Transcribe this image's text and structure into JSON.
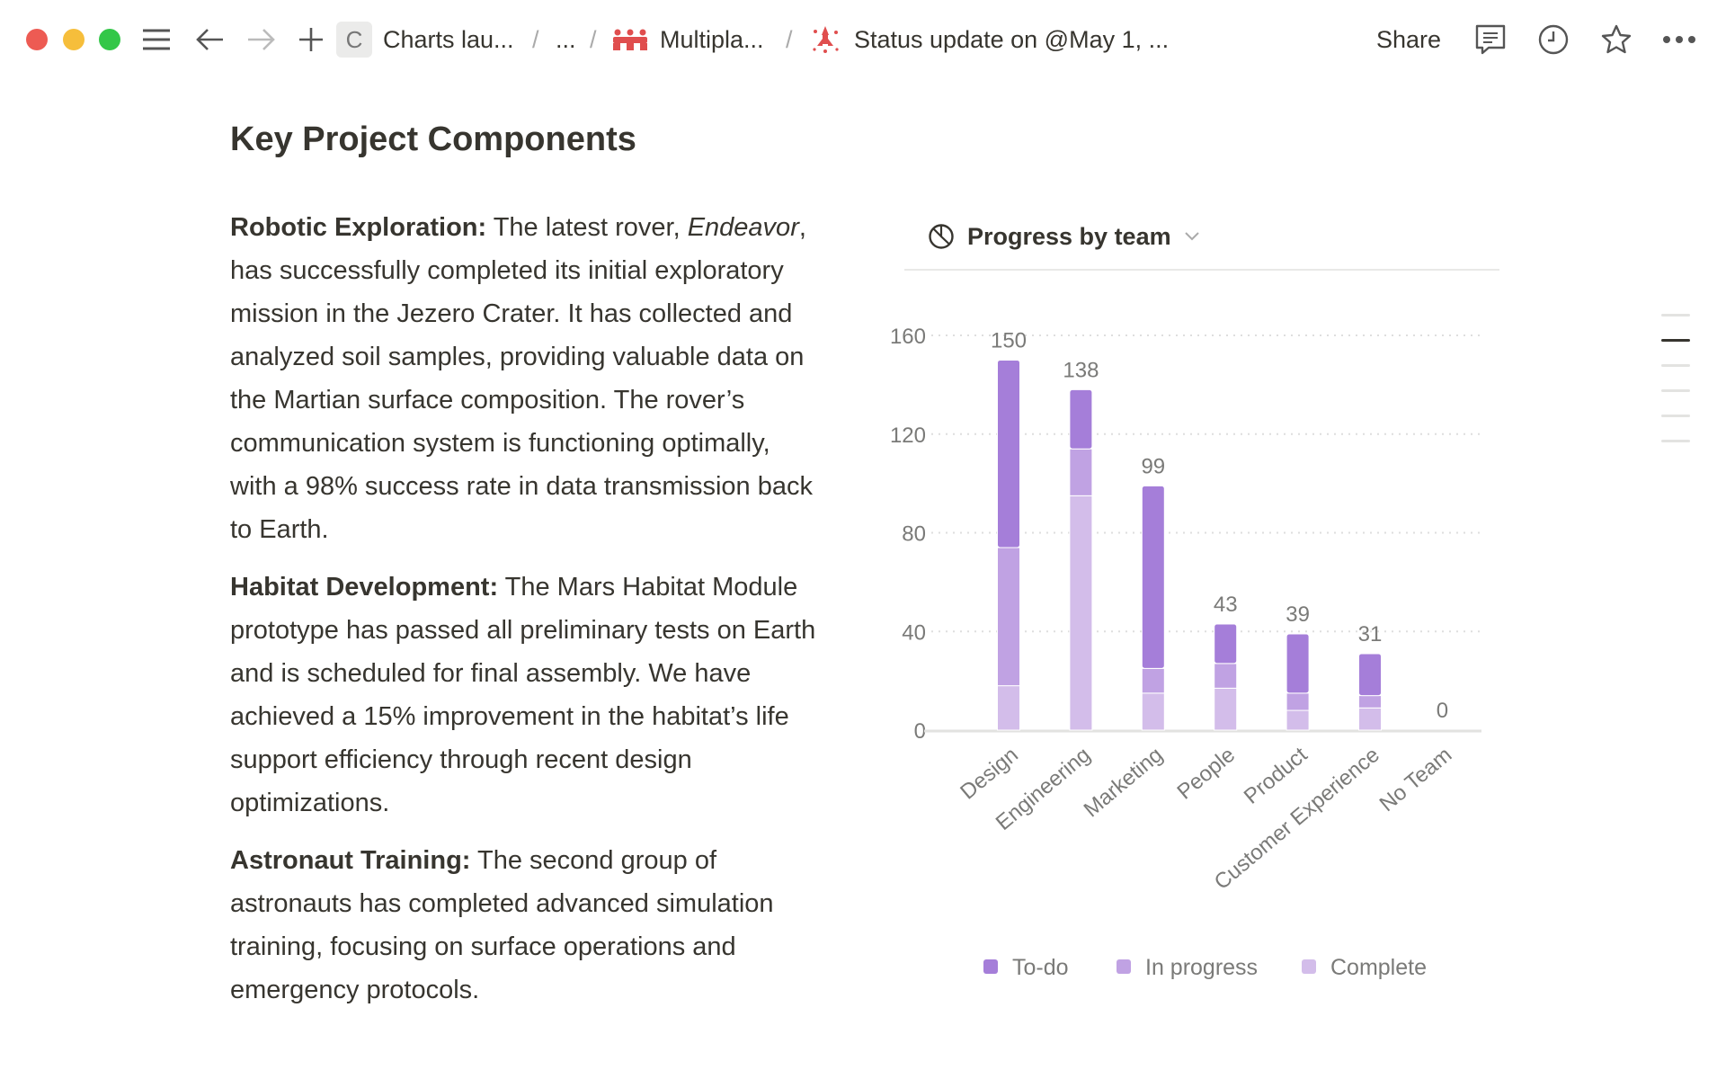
{
  "topbar": {
    "window_controls": {
      "close_color": "#ed5b53",
      "minimize_color": "#f6be3b",
      "maximize_color": "#33c748"
    },
    "icons": [
      "menu-icon",
      "back-arrow-icon",
      "forward-arrow-icon",
      "plus-icon"
    ],
    "breadcrumb": [
      {
        "badge": "C",
        "label": "Charts lau..."
      },
      {
        "label": "..."
      },
      {
        "icon": "people-icon",
        "label": "Multipla..."
      },
      {
        "icon": "rocket-icon",
        "label": "Status update on @May 1, ..."
      }
    ],
    "separator": "/",
    "share_label": "Share",
    "right_icons": [
      "comment-icon",
      "clock-icon",
      "star-icon",
      "more-icon"
    ]
  },
  "page": {
    "heading": "Key Project Components",
    "paragraphs": [
      {
        "lead": "Robotic Exploration:",
        "pre": " The latest rover, ",
        "italic": "Endeavor",
        "text": ", has successfully completed its initial exploratory mission in the Jezero Crater. It has collected and analyzed soil samples, providing valuable data on the Martian surface composition. The rover’s communication system is functioning optimally, with a 98% success rate in data transmission back to Earth."
      },
      {
        "lead": "Habitat Development:",
        "text": " The Mars Habitat Module prototype has passed all preliminary tests on Earth and is scheduled for final assembly. We have achieved a 15% improvement in the habitat’s life support efficiency through recent design optimizations."
      },
      {
        "lead": "Astronaut Training:",
        "text": " The second group of astronauts has completed advanced simulation training, focusing on surface operations and emergency protocols."
      }
    ]
  },
  "chart_header": {
    "icon": "chart-pie-icon",
    "title": "Progress by team"
  },
  "chart_data": {
    "type": "bar",
    "stacked": true,
    "title": "Progress by team",
    "categories": [
      "Design",
      "Engineering",
      "Marketing",
      "People",
      "Product",
      "Customer Experience",
      "No Team"
    ],
    "series": [
      {
        "name": "Complete",
        "color": "#d3bdea",
        "values": [
          18,
          95,
          15,
          17,
          8,
          9,
          0
        ]
      },
      {
        "name": "In progress",
        "color": "#c0a2e3",
        "values": [
          56,
          19,
          10,
          10,
          7,
          5,
          0
        ]
      },
      {
        "name": "To-do",
        "color": "#a57ed9",
        "values": [
          76,
          24,
          74,
          16,
          24,
          17,
          0
        ]
      }
    ],
    "totals": [
      150,
      138,
      99,
      43,
      39,
      31,
      0
    ],
    "ylim": [
      0,
      160
    ],
    "yticks": [
      0,
      40,
      80,
      120,
      160
    ],
    "grid": "dotted horizontal",
    "legend": {
      "position": "bottom",
      "order": [
        "To-do",
        "In progress",
        "Complete"
      ]
    }
  },
  "outline": {
    "items": 6,
    "active": 2
  }
}
